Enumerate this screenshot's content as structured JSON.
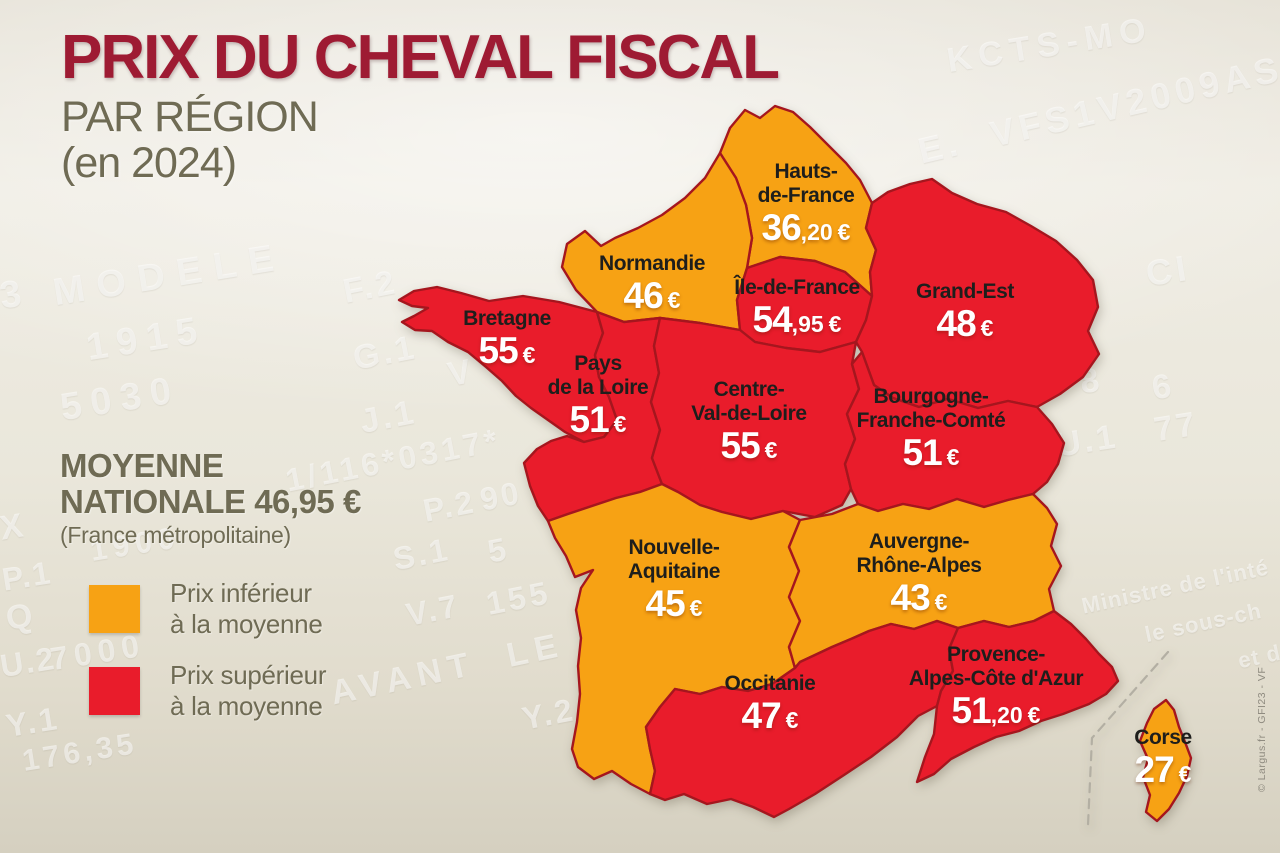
{
  "title": "PRIX DU CHEVAL FISCAL",
  "subtitle_line1": "PAR RÉGION",
  "subtitle_line2": "(en 2024)",
  "average": {
    "line1": "MOYENNE",
    "line2": "NATIONALE 46,95 €",
    "note": "(France métropolitaine)"
  },
  "legend": {
    "below": {
      "line1": "Prix inférieur",
      "line2": "à la moyenne"
    },
    "above": {
      "line1": "Prix supérieur",
      "line2": "à la moyenne"
    }
  },
  "colors": {
    "below": "#F7A214",
    "above": "#E91C2B",
    "border": "#A5161E",
    "title": "#9E1B33",
    "olive": "#6F6B54",
    "name_text": "#1E1E1C"
  },
  "credit": "© Largus.fr - GFI23 - VF",
  "regions": [
    {
      "id": "hauts-de-france",
      "name_lines": [
        "Hauts-",
        "de-France"
      ],
      "price_eur": 36.2,
      "price_int": "36",
      "price_dec": ",20",
      "currency": "€",
      "status": "below"
    },
    {
      "id": "normandie",
      "name_lines": [
        "Normandie"
      ],
      "price_eur": 46,
      "price_int": "46",
      "price_dec": "",
      "currency": "€",
      "status": "below"
    },
    {
      "id": "ile-de-france",
      "name_lines": [
        "Île-de-France"
      ],
      "price_eur": 54.95,
      "price_int": "54",
      "price_dec": ",95",
      "currency": "€",
      "status": "above"
    },
    {
      "id": "grand-est",
      "name_lines": [
        "Grand-Est"
      ],
      "price_eur": 48,
      "price_int": "48",
      "price_dec": "",
      "currency": "€",
      "status": "above"
    },
    {
      "id": "bretagne",
      "name_lines": [
        "Bretagne"
      ],
      "price_eur": 55,
      "price_int": "55",
      "price_dec": "",
      "currency": "€",
      "status": "above"
    },
    {
      "id": "pays-de-la-loire",
      "name_lines": [
        "Pays",
        "de la Loire"
      ],
      "price_eur": 51,
      "price_int": "51",
      "price_dec": "",
      "currency": "€",
      "status": "above"
    },
    {
      "id": "centre-val-de-loire",
      "name_lines": [
        "Centre-",
        "Val-de-Loire"
      ],
      "price_eur": 55,
      "price_int": "55",
      "price_dec": "",
      "currency": "€",
      "status": "above"
    },
    {
      "id": "bourgogne-franche-comte",
      "name_lines": [
        "Bourgogne-",
        "Franche-Comté"
      ],
      "price_eur": 51,
      "price_int": "51",
      "price_dec": "",
      "currency": "€",
      "status": "above"
    },
    {
      "id": "nouvelle-aquitaine",
      "name_lines": [
        "Nouvelle-",
        "Aquitaine"
      ],
      "price_eur": 45,
      "price_int": "45",
      "price_dec": "",
      "currency": "€",
      "status": "below"
    },
    {
      "id": "auvergne-rhone-alpes",
      "name_lines": [
        "Auvergne-",
        "Rhône-Alpes"
      ],
      "price_eur": 43,
      "price_int": "43",
      "price_dec": "",
      "currency": "€",
      "status": "below"
    },
    {
      "id": "occitanie",
      "name_lines": [
        "Occitanie"
      ],
      "price_eur": 47,
      "price_int": "47",
      "price_dec": "",
      "currency": "€",
      "status": "above"
    },
    {
      "id": "provence-alpes-cote-d-azur",
      "name_lines": [
        "Provence-",
        "Alpes-Côte d'Azur"
      ],
      "price_eur": 51.2,
      "price_int": "51",
      "price_dec": ",20",
      "currency": "€",
      "status": "above"
    },
    {
      "id": "corse",
      "name_lines": [
        "Corse"
      ],
      "price_eur": 27,
      "price_int": "27",
      "price_dec": "",
      "currency": "€",
      "status": "below"
    }
  ],
  "watermarks": [
    "KCTS-MO",
    "E.  VFS1V2009AS",
    "MODELE",
    "1915",
    "5030",
    "3",
    "F.2",
    "G.1",
    "J.1",
    "V",
    "1/116*0317*",
    "P.2",
    "90",
    "1900",
    "S.1",
    "5",
    "V.7",
    "155",
    "X",
    "P.1",
    "Q",
    "U.2",
    "7000",
    "Y.1",
    "176,35",
    "AVANT  LE  0",
    "Y.2",
    "CI",
    "8",
    "6",
    "77",
    "U.1",
    "Ministre de l'inté",
    "le sous-ch",
    "et d"
  ]
}
